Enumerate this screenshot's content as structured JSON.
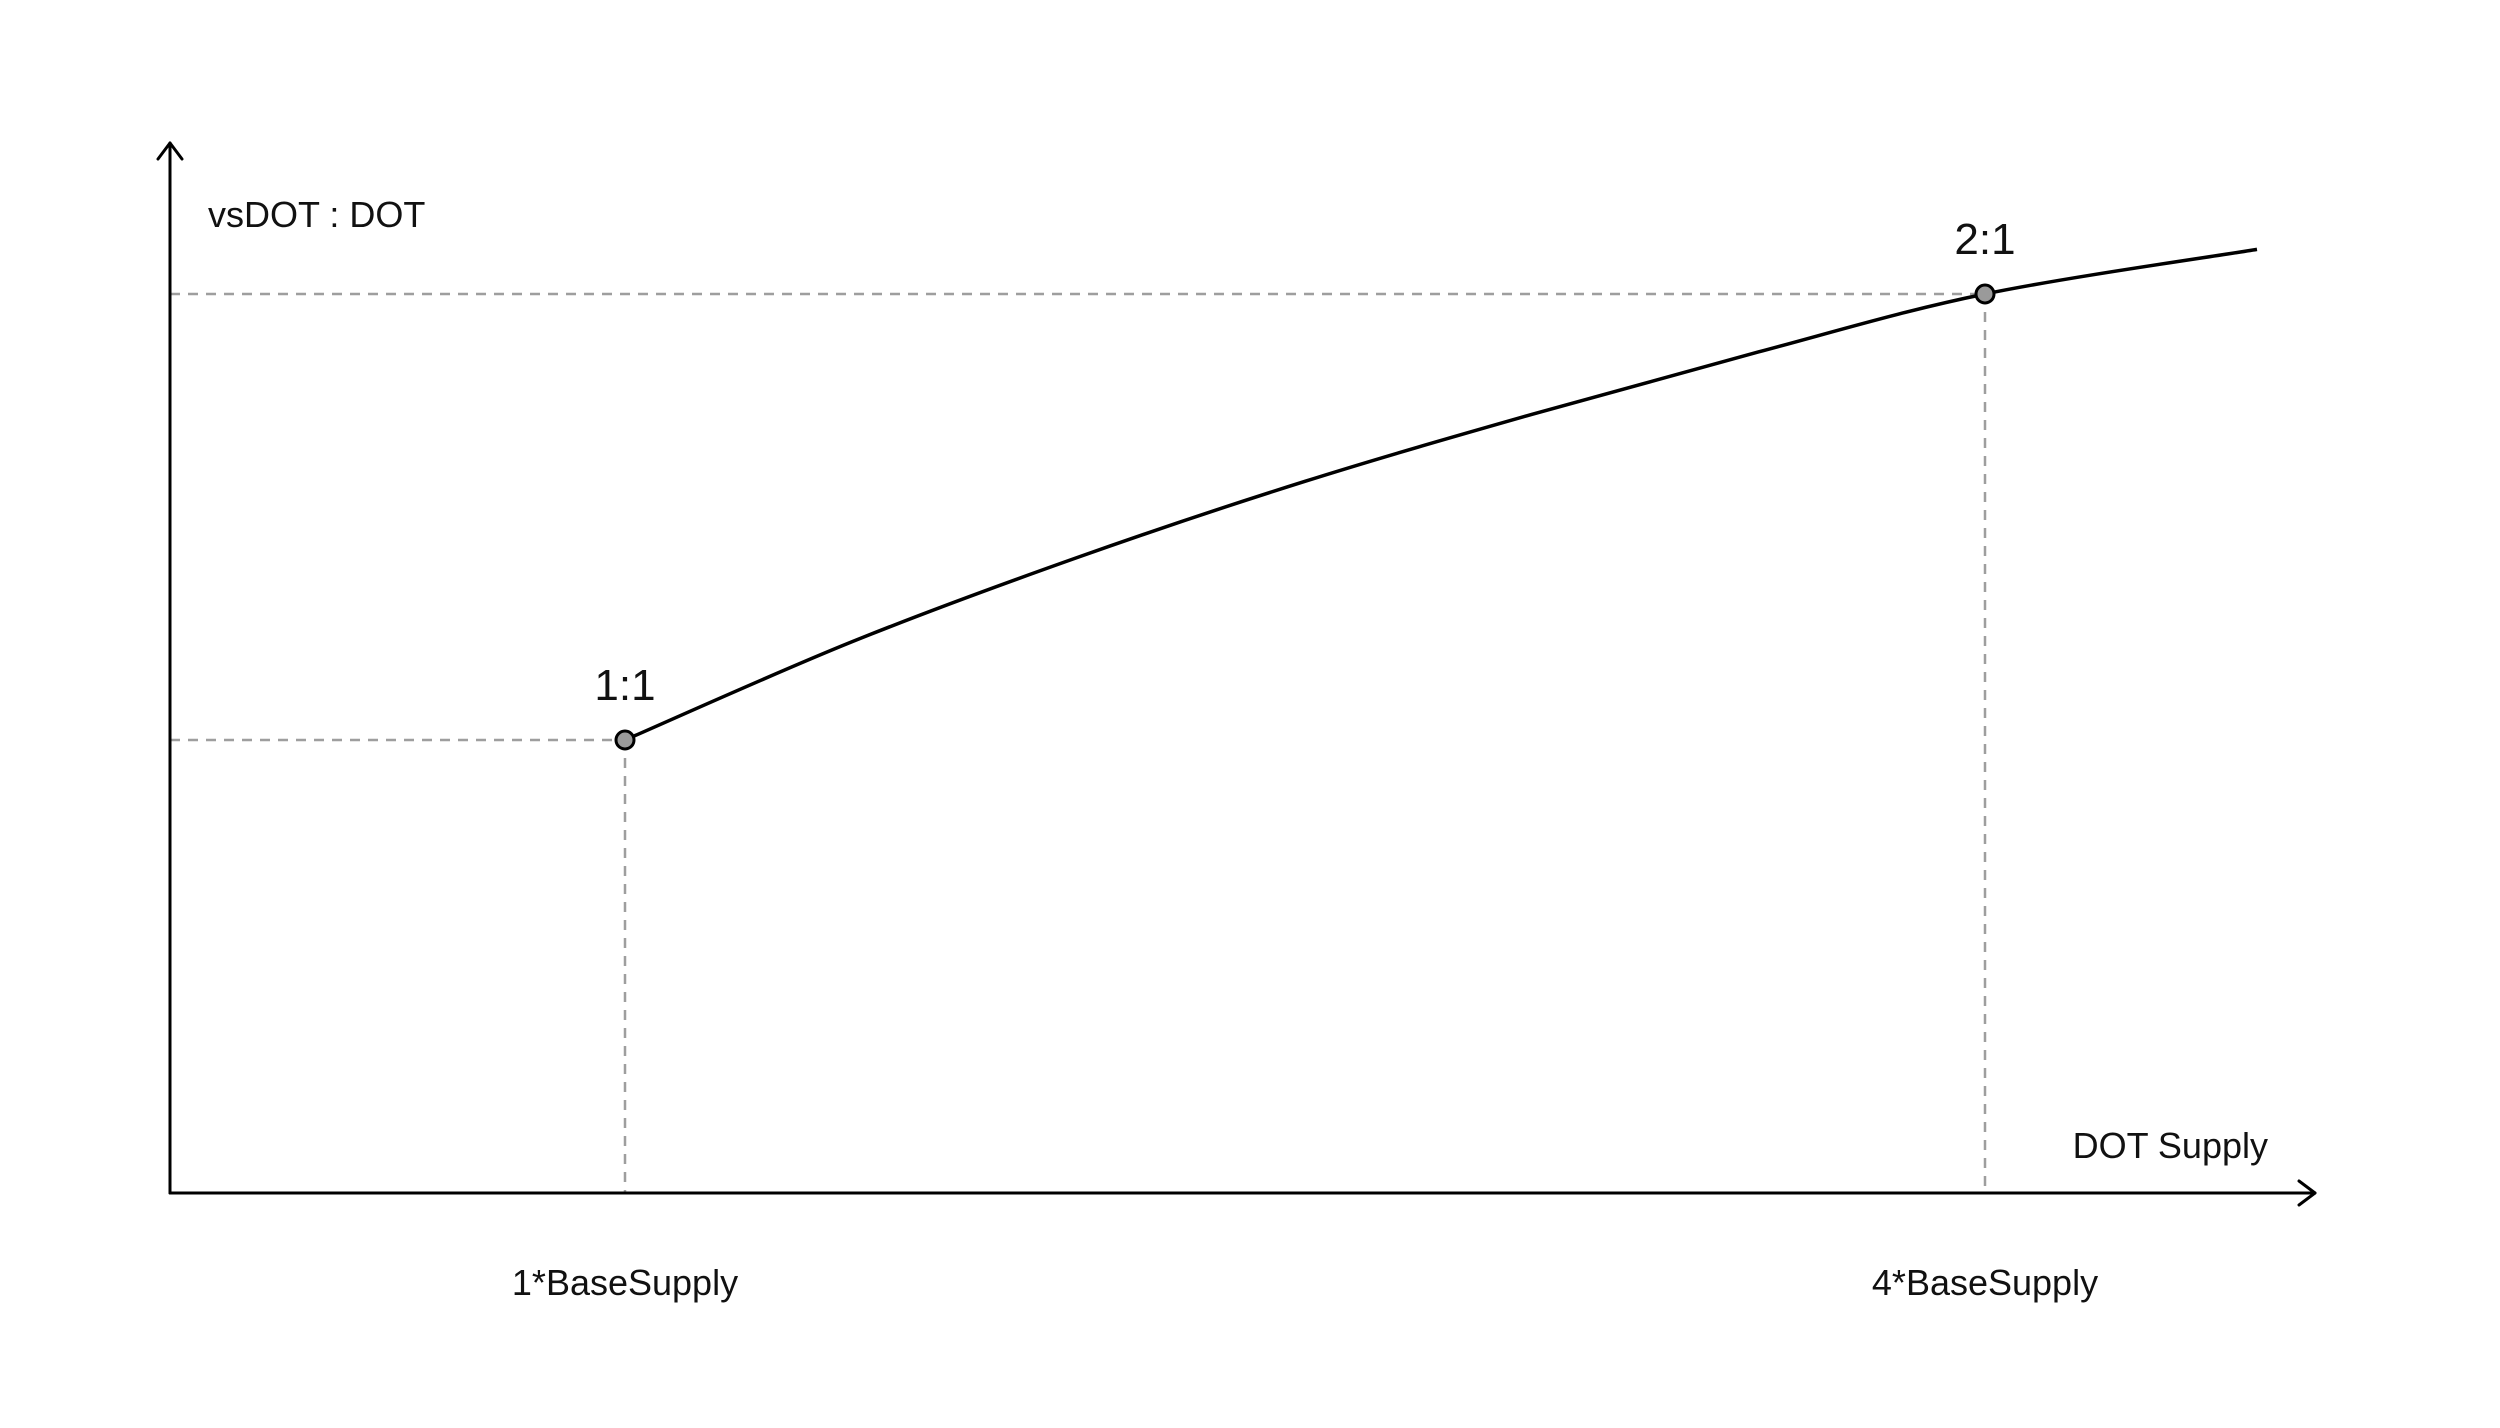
{
  "chart_data": {
    "type": "line",
    "title": "",
    "xlabel": "DOT Supply",
    "ylabel": "vsDOT : DOT",
    "x_ticks": [
      {
        "value": 1,
        "label": "1*BaseSupply"
      },
      {
        "value": 4,
        "label": "4*BaseSupply"
      }
    ],
    "points": [
      {
        "x": 1,
        "y": 1,
        "label": "1:1"
      },
      {
        "x": 4,
        "y": 2,
        "label": "2:1"
      }
    ],
    "series": [
      {
        "values": [
          {
            "x": 1,
            "y": 1
          },
          {
            "x": 1.5,
            "y": 1.22
          },
          {
            "x": 2,
            "y": 1.41
          },
          {
            "x": 2.5,
            "y": 1.58
          },
          {
            "x": 3,
            "y": 1.73
          },
          {
            "x": 3.5,
            "y": 1.87
          },
          {
            "x": 4,
            "y": 2
          },
          {
            "x": 4.6,
            "y": 2.1
          }
        ],
        "color": "#000000"
      }
    ],
    "xlim": [
      0,
      5.2
    ],
    "ylim": [
      0,
      2.3
    ],
    "grid": false,
    "guide_lines": "dashed gray from each marked point to both axes",
    "axis_arrows": true,
    "marker_color": "#9a9a9a"
  }
}
